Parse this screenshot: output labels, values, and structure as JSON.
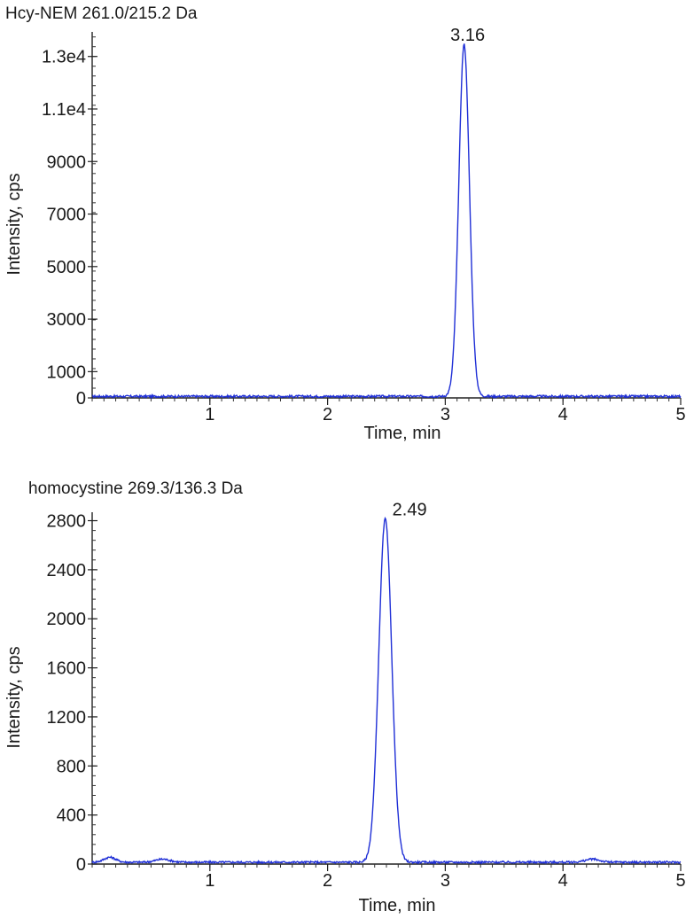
{
  "chart_data": [
    {
      "type": "line",
      "title": "Hcy-NEM  261.0/215.2 Da",
      "xlabel": "Time, min",
      "ylabel": "Intensity, cps",
      "xlim": [
        0,
        5
      ],
      "ylim": [
        0,
        13800
      ],
      "xticks": [
        1,
        2,
        3,
        4,
        5
      ],
      "xtick_labels": [
        "1",
        "2",
        "3",
        "4",
        "5"
      ],
      "yticks": [
        0,
        1000,
        3000,
        5000,
        7000,
        9000,
        11000,
        13000
      ],
      "ytick_labels": [
        "0",
        "1000",
        "3000",
        "5000",
        "7000",
        "9000",
        "1.1e4",
        "1.3e4"
      ],
      "grid": false,
      "line_color": "#1f2fd6",
      "baseline": 60,
      "noise_amplitude": 40,
      "peaks": [
        {
          "center": 3.16,
          "height": 13400,
          "sigma": 0.045,
          "label": "3.16"
        }
      ],
      "series": [
        {
          "x": [
            0.0,
            0.5,
            1.0,
            1.5,
            2.0,
            2.5,
            3.0,
            3.05,
            3.1,
            3.16,
            3.22,
            3.27,
            3.32,
            3.4,
            3.5,
            4.0,
            4.5,
            5.0
          ],
          "values": [
            60,
            80,
            50,
            70,
            60,
            50,
            70,
            400,
            6000,
            13400,
            6000,
            400,
            120,
            60,
            70,
            60,
            70,
            60
          ]
        }
      ]
    },
    {
      "type": "line",
      "title": "homocystine  269.3/136.3 Da",
      "xlabel": "Time, min",
      "ylabel": "Intensity, cps",
      "xlim": [
        0,
        5
      ],
      "ylim": [
        0,
        2840
      ],
      "xticks": [
        1,
        2,
        3,
        4,
        5
      ],
      "xtick_labels": [
        "1",
        "2",
        "3",
        "4",
        "5"
      ],
      "yticks": [
        0,
        400,
        800,
        1200,
        1600,
        2000,
        2400,
        2800
      ],
      "ytick_labels": [
        "0",
        "400",
        "800",
        "1200",
        "1600",
        "2000",
        "2400",
        "2800"
      ],
      "grid": false,
      "line_color": "#1f2fd6",
      "baseline": 15,
      "noise_amplitude": 8,
      "peaks": [
        {
          "center": 2.49,
          "height": 2800,
          "sigma": 0.055,
          "label": "2.49"
        },
        {
          "center": 0.15,
          "height": 40,
          "sigma": 0.05,
          "label": ""
        },
        {
          "center": 0.6,
          "height": 25,
          "sigma": 0.06,
          "label": ""
        },
        {
          "center": 4.25,
          "height": 25,
          "sigma": 0.06,
          "label": ""
        }
      ],
      "series": [
        {
          "x": [
            0.0,
            0.15,
            0.5,
            1.0,
            1.5,
            2.0,
            2.3,
            2.4,
            2.49,
            2.58,
            2.65,
            2.8,
            3.0,
            3.5,
            4.0,
            4.25,
            4.5,
            5.0
          ],
          "values": [
            15,
            50,
            20,
            15,
            20,
            15,
            20,
            700,
            2800,
            700,
            60,
            20,
            15,
            20,
            15,
            35,
            15,
            15
          ]
        }
      ]
    }
  ]
}
